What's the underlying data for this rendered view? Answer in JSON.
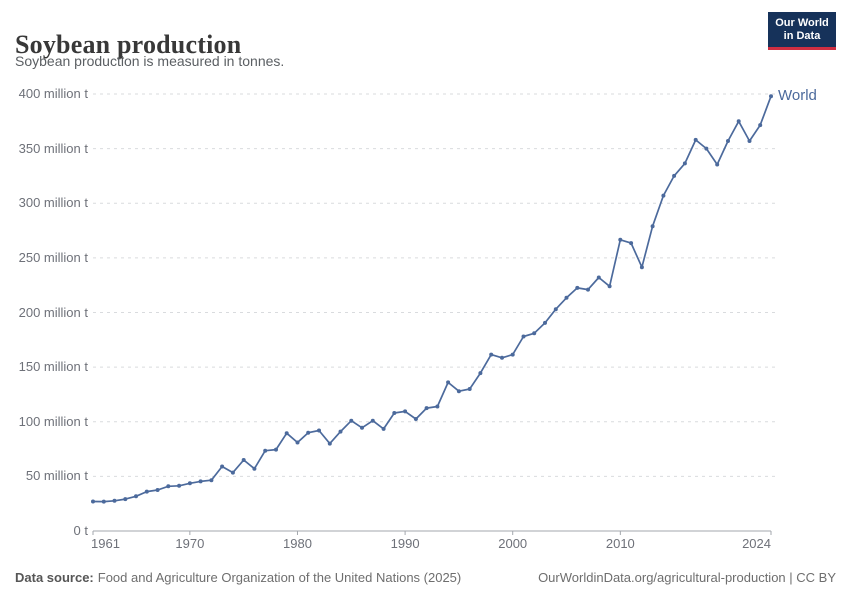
{
  "header": {
    "title": "Soybean production",
    "subtitle": "Soybean production is measured in tonnes.",
    "logo": {
      "line1": "Our World",
      "line2": "in Data",
      "bg_color": "#16325a",
      "accent_color": "#cf2e41"
    }
  },
  "chart_data": {
    "type": "line",
    "title": "Soybean production",
    "unit": "tonnes",
    "xlabel": "",
    "ylabel": "",
    "xlim": [
      1961,
      2024
    ],
    "ylim": [
      0,
      400
    ],
    "grid": true,
    "legend_position": "end-of-line-label",
    "x_ticks": [
      1961,
      1970,
      1980,
      1990,
      2000,
      2010,
      2024
    ],
    "y_ticks": [
      {
        "value": 0,
        "label": "0 t"
      },
      {
        "value": 50,
        "label": "50 million t"
      },
      {
        "value": 100,
        "label": "100 million t"
      },
      {
        "value": 150,
        "label": "150 million t"
      },
      {
        "value": 200,
        "label": "200 million t"
      },
      {
        "value": 250,
        "label": "250 million t"
      },
      {
        "value": 300,
        "label": "300 million t"
      },
      {
        "value": 350,
        "label": "350 million t"
      },
      {
        "value": 400,
        "label": "400 million t"
      }
    ],
    "x": [
      1961,
      1962,
      1963,
      1964,
      1965,
      1966,
      1967,
      1968,
      1969,
      1970,
      1971,
      1972,
      1973,
      1974,
      1975,
      1976,
      1977,
      1978,
      1979,
      1980,
      1981,
      1982,
      1983,
      1984,
      1985,
      1986,
      1987,
      1988,
      1989,
      1990,
      1991,
      1992,
      1993,
      1994,
      1995,
      1996,
      1997,
      1998,
      1999,
      2000,
      2001,
      2002,
      2003,
      2004,
      2005,
      2006,
      2007,
      2008,
      2009,
      2010,
      2011,
      2012,
      2013,
      2014,
      2015,
      2016,
      2017,
      2018,
      2019,
      2020,
      2021,
      2022,
      2023,
      2024
    ],
    "series": [
      {
        "name": "World",
        "color": "#4c6a9c",
        "values": [
          27,
          26.9,
          27.6,
          29.2,
          31.8,
          36.1,
          37.5,
          40.9,
          41.4,
          43.7,
          45.4,
          46.5,
          59,
          53.5,
          65,
          57,
          73.5,
          74.5,
          89.5,
          81,
          90,
          92,
          80,
          91,
          101,
          94.5,
          101,
          93.5,
          108,
          109.5,
          102.5,
          112.5,
          114,
          136,
          128,
          130,
          144.5,
          161.5,
          158.5,
          161.5,
          178,
          181,
          190.5,
          203,
          213.5,
          222.5,
          221,
          232,
          224,
          266.5,
          263.5,
          241.5,
          279,
          307,
          325,
          336.5,
          358,
          350,
          335.5,
          357,
          375,
          357,
          371.5,
          398
        ]
      }
    ],
    "colors": {
      "grid": "#d9dbde",
      "axis": "#a3a7ad",
      "tick_text": "#6e7179"
    }
  },
  "footer": {
    "source_label": "Data source:",
    "source_text": "Food and Agriculture Organization of the United Nations (2025)",
    "right_text": "OurWorldinData.org/agricultural-production | CC BY"
  }
}
